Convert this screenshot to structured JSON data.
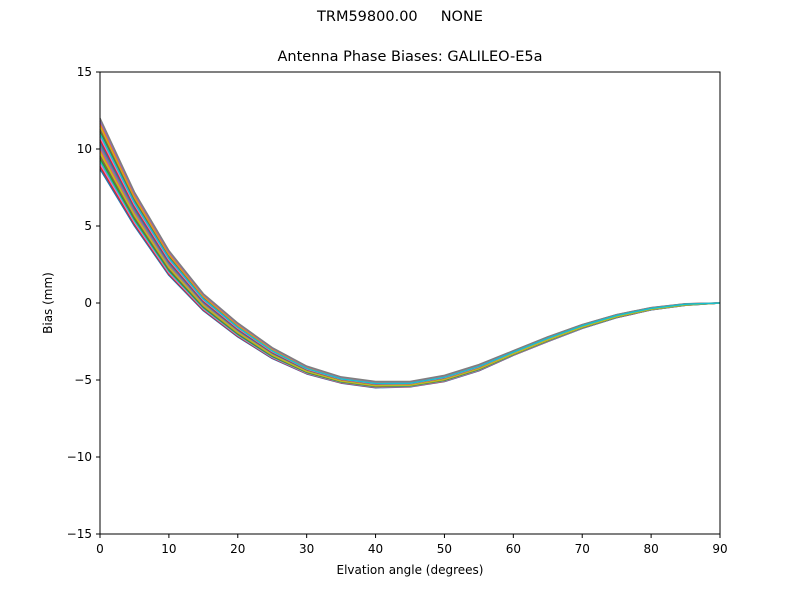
{
  "suptitle": "TRM59800.00     NONE",
  "chart_data": {
    "type": "line",
    "title": "Antenna Phase Biases: GALILEO-E5a",
    "suptitle": "TRM59800.00     NONE",
    "xlabel": "Elvation angle (degrees)",
    "ylabel": "Bias (mm)",
    "xlim": [
      0,
      90
    ],
    "ylim": [
      -15,
      15
    ],
    "xticks": [
      0,
      10,
      20,
      30,
      40,
      50,
      60,
      70,
      80,
      90
    ],
    "yticks": [
      -15,
      -10,
      -5,
      0,
      5,
      10,
      15
    ],
    "ytick_labels": [
      "−15",
      "−10",
      "−5",
      "0",
      "5",
      "10",
      "15"
    ],
    "grid": false,
    "legend": false,
    "colors": [
      "#1f77b4",
      "#ff7f0e",
      "#2ca02c",
      "#d62728",
      "#9467bd",
      "#8c564b",
      "#e377c2",
      "#7f7f7f",
      "#bcbd22",
      "#17becf"
    ],
    "x": [
      0,
      5,
      10,
      15,
      20,
      25,
      30,
      35,
      40,
      45,
      50,
      55,
      60,
      65,
      70,
      75,
      80,
      85,
      90
    ],
    "upper_envelope": [
      12.0,
      7.2,
      3.4,
      0.6,
      -1.3,
      -2.9,
      -4.1,
      -4.8,
      -5.1,
      -5.1,
      -4.7,
      -4.0,
      -3.1,
      -2.2,
      -1.4,
      -0.75,
      -0.3,
      -0.05,
      0.0
    ],
    "lower_envelope": [
      8.7,
      5.0,
      1.8,
      -0.5,
      -2.2,
      -3.6,
      -4.6,
      -5.2,
      -5.5,
      -5.45,
      -5.1,
      -4.4,
      -3.4,
      -2.5,
      -1.65,
      -0.95,
      -0.45,
      -0.15,
      0.0
    ],
    "series_count": 20
  }
}
